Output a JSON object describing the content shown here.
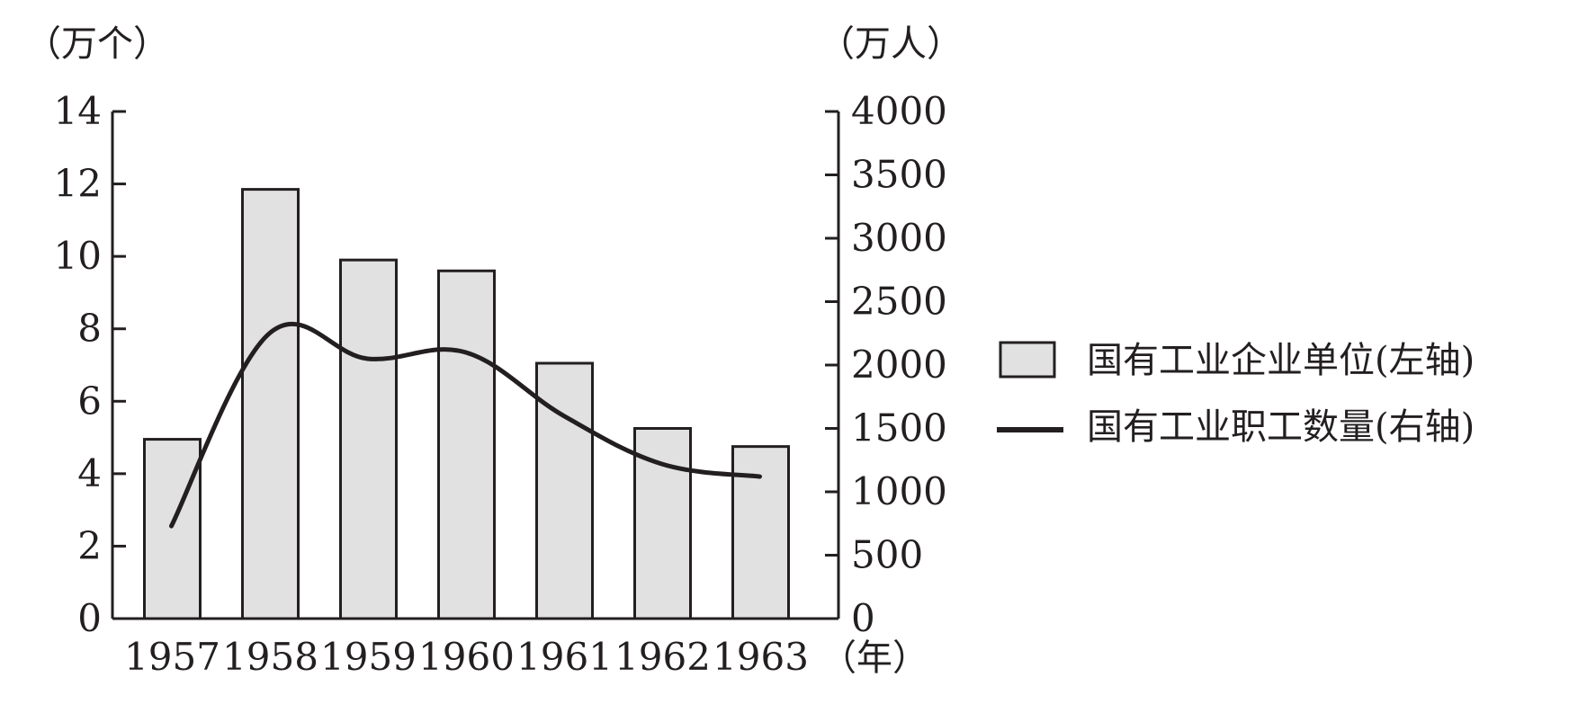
{
  "chart_data": {
    "type": "bar",
    "categories": [
      "1957",
      "1958",
      "1959",
      "1960",
      "1961",
      "1962",
      "1963"
    ],
    "x_unit": "（年）",
    "series": [
      {
        "name": "国有工业企业单位(左轴)",
        "type": "bar",
        "axis": "left",
        "values": [
          4.95,
          11.85,
          9.9,
          9.6,
          7.05,
          5.25,
          4.75
        ]
      },
      {
        "name": "国有工业职工数量(右轴)",
        "type": "line",
        "axis": "right",
        "values": [
          730,
          2250,
          2050,
          2100,
          1600,
          1220,
          1120
        ]
      }
    ],
    "left_axis": {
      "unit": "（万个）",
      "ticks": [
        "0",
        "2",
        "4",
        "6",
        "8",
        "10",
        "12",
        "14"
      ],
      "ylim": [
        0,
        14
      ]
    },
    "right_axis": {
      "unit": "（万人）",
      "ticks": [
        "0",
        "500",
        "1000",
        "1500",
        "2000",
        "2500",
        "3000",
        "3500",
        "4000"
      ],
      "ylim": [
        0,
        4000
      ]
    },
    "legend_position": "right",
    "grid": false,
    "colors": {
      "bar_fill": "#e1e1e1",
      "stroke": "#231f20"
    }
  }
}
